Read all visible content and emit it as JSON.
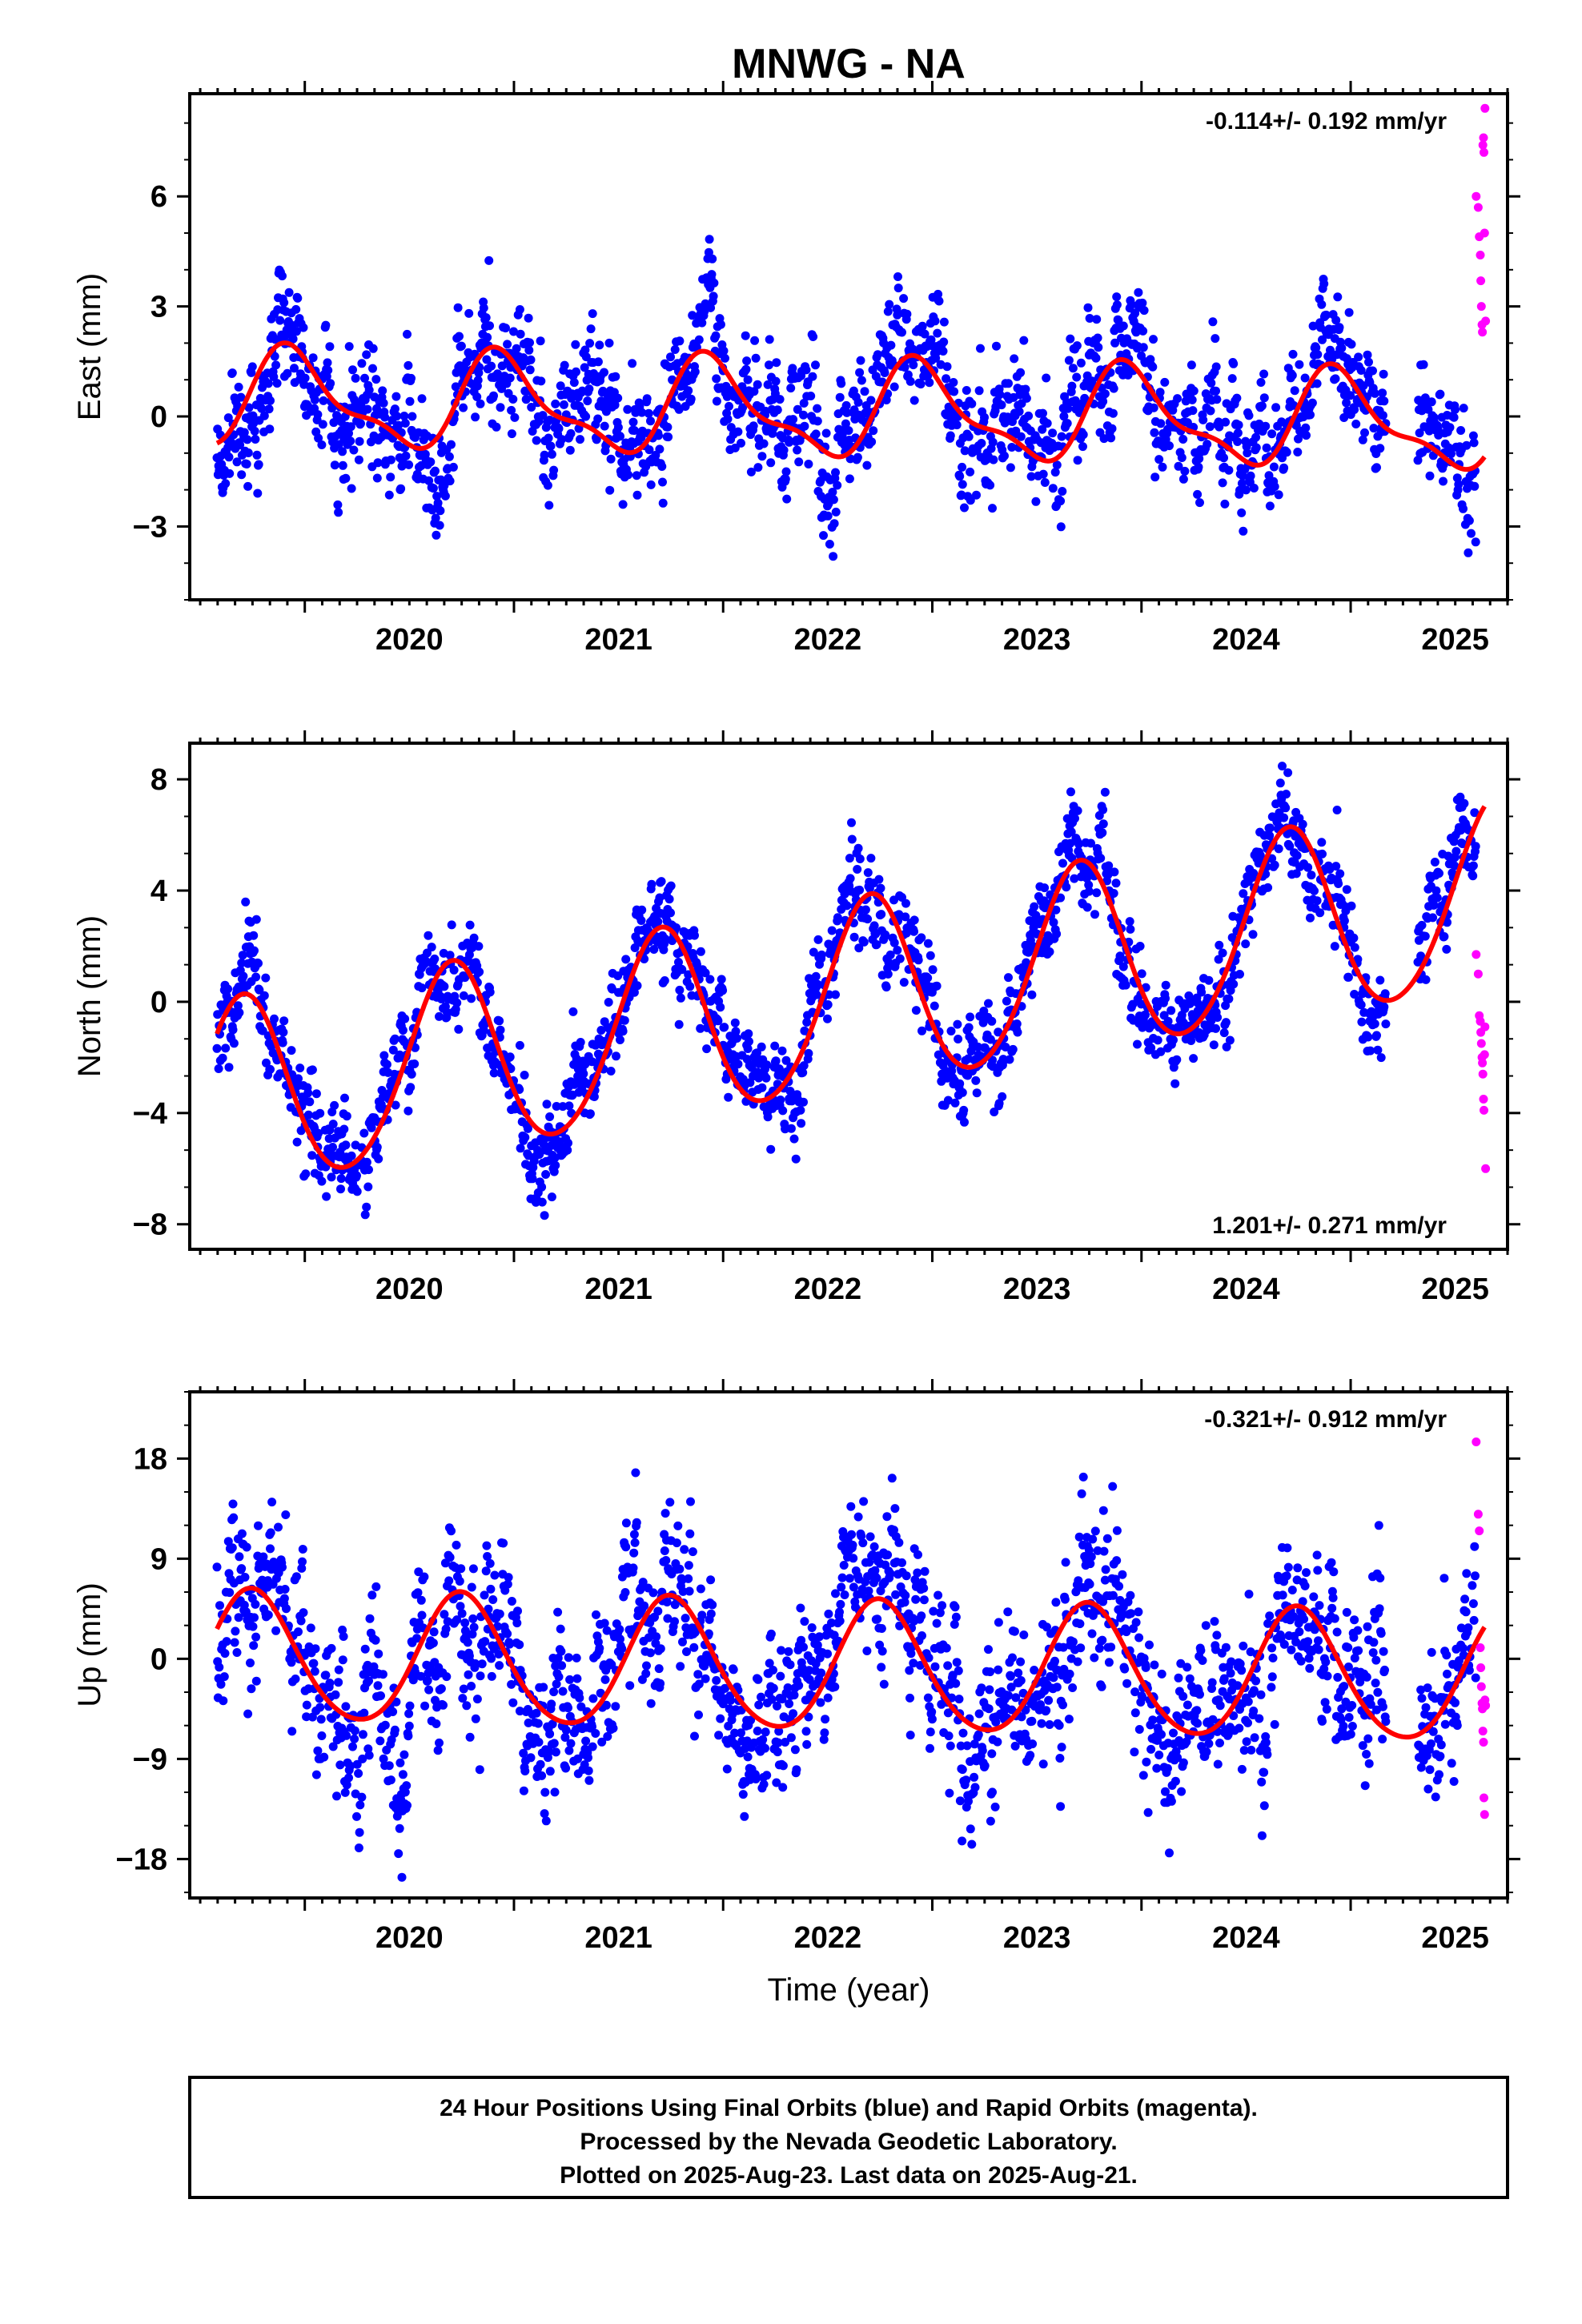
{
  "title": "MNWG - NA",
  "colors": {
    "final": "#0000ff",
    "rapid": "#ff00ff",
    "fit": "#ff0000",
    "frame": "#000000"
  },
  "xlabel": "Time (year)",
  "footer": {
    "line1": "24 Hour Positions Using Final Orbits (blue) and Rapid Orbits (magenta).",
    "line2": "Processed by the Nevada Geodetic Laboratory.",
    "line3": "Plotted on 2025-Aug-23. Last data on 2025-Aug-21."
  },
  "chart_data": [
    {
      "type": "scatter",
      "name": "east",
      "ylabel": "East (mm)",
      "rate": "-0.114+/- 0.192 mm/yr",
      "rate_position": "top-right",
      "xlim": [
        2019.45,
        2025.75
      ],
      "ylim": [
        -5.0,
        8.8
      ],
      "xticks": [
        2020,
        2021,
        2022,
        2023,
        2024,
        2025
      ],
      "yticks": [
        6,
        3,
        0,
        -3
      ],
      "ytick_labels": [
        "6",
        "3",
        "0",
        "−3"
      ],
      "fit": {
        "name": "fit",
        "offset": 0.14,
        "trend": -0.114,
        "t0": 2022.5,
        "ann_amp": 1.2,
        "ann_phase": 2019.7,
        "semi_amp": 0.45,
        "semi_phase": 2019.75,
        "color": "#ff0000"
      },
      "final_series": {
        "name": "Final Orbits",
        "color": "#0000ff",
        "x_start": 2019.58,
        "x_end": 2025.6,
        "step_days": 1,
        "gaps": [
          [
            2025.17,
            2025.32
          ]
        ],
        "scatter_std": 0.85,
        "seed": 11
      },
      "rapid_series": {
        "name": "Rapid Orbits",
        "color": "#ff00ff",
        "x": [
          2025.6,
          2025.61,
          2025.615,
          2025.62,
          2025.622,
          2025.625,
          2025.628,
          2025.63,
          2025.632,
          2025.635,
          2025.637,
          2025.64,
          2025.642,
          2025.645
        ],
        "y": [
          6.0,
          5.7,
          4.9,
          4.4,
          3.7,
          3.0,
          2.5,
          2.3,
          7.4,
          7.6,
          7.2,
          5.0,
          8.4,
          2.6
        ]
      }
    },
    {
      "type": "scatter",
      "name": "north",
      "ylabel": "North (mm)",
      "rate": "1.201+/- 0.271 mm/yr",
      "rate_position": "bottom-right",
      "xlim": [
        2019.45,
        2025.75
      ],
      "ylim": [
        -8.9,
        9.3
      ],
      "xticks": [
        2020,
        2021,
        2022,
        2023,
        2024,
        2025
      ],
      "yticks": [
        8,
        4,
        0,
        -4,
        -8
      ],
      "ytick_labels": [
        "8",
        "4",
        "0",
        "−4",
        "−8"
      ],
      "fit": {
        "name": "fit",
        "offset": -0.05,
        "trend": 1.201,
        "t0": 2022.5,
        "ann_amp": 3.4,
        "ann_phase": 2019.45,
        "semi_amp": 0.3,
        "semi_phase": 2019.6,
        "color": "#ff0000"
      },
      "final_series": {
        "name": "Final Orbits",
        "color": "#0000ff",
        "x_start": 2019.58,
        "x_end": 2025.6,
        "step_days": 1,
        "gaps": [
          [
            2025.17,
            2025.32
          ]
        ],
        "scatter_std": 0.9,
        "seed": 23
      },
      "rapid_series": {
        "name": "Rapid Orbits",
        "color": "#ff00ff",
        "x": [
          2025.6,
          2025.61,
          2025.615,
          2025.62,
          2025.622,
          2025.625,
          2025.628,
          2025.63,
          2025.632,
          2025.635,
          2025.637,
          2025.64,
          2025.642,
          2025.645
        ],
        "y": [
          1.7,
          1.0,
          -0.5,
          -0.7,
          -1.1,
          -1.5,
          -2.0,
          -2.2,
          -2.6,
          -3.5,
          -3.9,
          -1.9,
          -0.9,
          -6.0
        ]
      }
    },
    {
      "type": "scatter",
      "name": "up",
      "ylabel": "Up (mm)",
      "rate": "-0.321+/- 0.912 mm/yr",
      "rate_position": "top-right",
      "xlim": [
        2019.45,
        2025.75
      ],
      "ylim": [
        -21.5,
        24.0
      ],
      "xticks": [
        2020,
        2021,
        2022,
        2023,
        2024,
        2025
      ],
      "yticks": [
        18,
        9,
        0,
        -9,
        -18
      ],
      "ytick_labels": [
        "18",
        "9",
        "0",
        "−9",
        "−18"
      ],
      "fit": {
        "name": "fit",
        "offset": -0.9,
        "trend": -0.321,
        "t0": 2022.5,
        "ann_amp": 5.8,
        "ann_phase": 2019.5,
        "semi_amp": 0.6,
        "semi_phase": 2019.6,
        "color": "#ff0000"
      },
      "final_series": {
        "name": "Final Orbits",
        "color": "#0000ff",
        "x_start": 2019.58,
        "x_end": 2025.6,
        "step_days": 1,
        "gaps": [
          [
            2025.17,
            2025.32
          ]
        ],
        "scatter_std": 3.8,
        "seed": 37
      },
      "rapid_series": {
        "name": "Rapid Orbits",
        "color": "#ff00ff",
        "x": [
          2025.6,
          2025.61,
          2025.615,
          2025.62,
          2025.622,
          2025.625,
          2025.628,
          2025.63,
          2025.632,
          2025.635,
          2025.637,
          2025.64,
          2025.642,
          2025.645
        ],
        "y": [
          19.5,
          13.0,
          11.5,
          1.0,
          -0.8,
          -2.5,
          -4.0,
          -4.5,
          -6.5,
          -7.5,
          -12.5,
          -14.0,
          -3.7,
          -4.2
        ]
      }
    }
  ]
}
